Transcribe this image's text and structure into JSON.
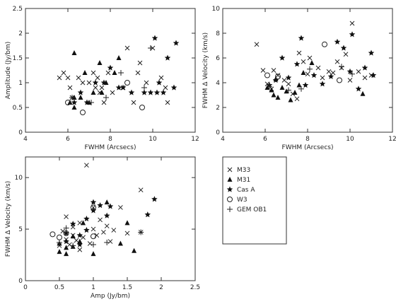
{
  "chart_data": [
    {
      "type": "scatter",
      "xlabel": "FWHM (Arcsecs)",
      "ylabel": "Amplitude (Jy/bm)",
      "xlim": [
        4,
        12
      ],
      "ylim": [
        0,
        2.5
      ],
      "xticks": [
        4,
        6,
        8,
        10,
        12
      ],
      "yticks": [
        0,
        0.5,
        1,
        1.5,
        2,
        2.5
      ],
      "xtick_labels": [
        "4",
        "6",
        "8",
        "10",
        "12"
      ],
      "ytick_labels": [
        "0",
        "0.5",
        "1",
        "1.5",
        "2",
        "2.5"
      ],
      "series": [
        {
          "name": "M33",
          "marker": "x",
          "points": [
            [
              5.6,
              1.1
            ],
            [
              5.8,
              1.2
            ],
            [
              6,
              1.1
            ],
            [
              6.1,
              0.9
            ],
            [
              6.2,
              0.7
            ],
            [
              6.5,
              1.1
            ],
            [
              6.7,
              1
            ],
            [
              7,
              1
            ],
            [
              7.2,
              1.2
            ],
            [
              7.3,
              0.9
            ],
            [
              7.4,
              1.1
            ],
            [
              7.5,
              0.8
            ],
            [
              7.6,
              0.9
            ],
            [
              7.7,
              0.6
            ],
            [
              7.9,
              1.2
            ],
            [
              8.1,
              0.8
            ],
            [
              8.6,
              0.9
            ],
            [
              8.8,
              1.7
            ],
            [
              9.1,
              0.6
            ],
            [
              9.3,
              1.2
            ],
            [
              9.4,
              1.4
            ],
            [
              9.7,
              1
            ],
            [
              10,
              1.7
            ],
            [
              10.4,
              1.1
            ],
            [
              10.6,
              0.9
            ],
            [
              10.7,
              0.6
            ]
          ]
        },
        {
          "name": "M31",
          "marker": "triangle",
          "points": [
            [
              6.1,
              0.6
            ],
            [
              6.3,
              0.7
            ],
            [
              6.3,
              0.5
            ],
            [
              6.3,
              1.6
            ],
            [
              6.6,
              0.7
            ],
            [
              6.8,
              1.2
            ],
            [
              7,
              0.6
            ],
            [
              7.2,
              0.8
            ],
            [
              7.5,
              1.4
            ],
            [
              7.6,
              0.8
            ],
            [
              7.8,
              1
            ],
            [
              8.2,
              1.2
            ],
            [
              8.4,
              1.5
            ]
          ]
        },
        {
          "name": "Cas A",
          "marker": "star",
          "points": [
            [
              6.3,
              0.6
            ],
            [
              6.6,
              0.8
            ],
            [
              6.9,
              0.6
            ],
            [
              7.3,
              1
            ],
            [
              7.7,
              1
            ],
            [
              8,
              1.3
            ],
            [
              8.4,
              0.9
            ],
            [
              8.6,
              0.9
            ],
            [
              9,
              0.8
            ],
            [
              9.6,
              0.8
            ],
            [
              9.9,
              0.8
            ],
            [
              10.1,
              1.9
            ],
            [
              10.2,
              0.8
            ],
            [
              10.3,
              1
            ],
            [
              10.5,
              0.8
            ],
            [
              10.7,
              1.5
            ],
            [
              11,
              0.9
            ],
            [
              11.1,
              1.8
            ]
          ]
        },
        {
          "name": "W3",
          "marker": "circle",
          "points": [
            [
              6,
              0.6
            ],
            [
              6.7,
              0.4
            ],
            [
              8.8,
              1
            ],
            [
              9.5,
              0.5
            ]
          ]
        },
        {
          "name": "GEM OB1",
          "marker": "plus",
          "points": [
            [
              6.2,
              0.7
            ],
            [
              7.1,
              0.6
            ],
            [
              7.8,
              0.7
            ],
            [
              8.5,
              1.2
            ],
            [
              9.6,
              0.9
            ],
            [
              9.9,
              1.7
            ]
          ]
        }
      ]
    },
    {
      "type": "scatter",
      "xlabel": "FWHM (Arcsecs)",
      "ylabel": "FWHM Δ Velocity (km/s)",
      "xlim": [
        4,
        12
      ],
      "ylim": [
        0,
        10
      ],
      "xticks": [
        4,
        6,
        8,
        10,
        12
      ],
      "yticks": [
        0,
        2,
        4,
        6,
        8,
        10
      ],
      "xtick_labels": [
        "4",
        "6",
        "8",
        "10",
        "12"
      ],
      "ytick_labels": [
        "0",
        "2",
        "4",
        "6",
        "8",
        "10"
      ],
      "series": [
        {
          "name": "M33",
          "marker": "x",
          "points": [
            [
              5.6,
              7.1
            ],
            [
              5.9,
              5
            ],
            [
              6.1,
              3.9
            ],
            [
              6.3,
              3.5
            ],
            [
              6.4,
              5
            ],
            [
              6.6,
              4.6
            ],
            [
              6.9,
              4.2
            ],
            [
              7.1,
              3.9
            ],
            [
              7.3,
              3.1
            ],
            [
              7.5,
              2.7
            ],
            [
              7.6,
              6.4
            ],
            [
              7.8,
              5.7
            ],
            [
              8,
              4.7
            ],
            [
              8.1,
              6
            ],
            [
              8.5,
              5.2
            ],
            [
              8.7,
              4.4
            ],
            [
              9,
              4.9
            ],
            [
              9.2,
              4.8
            ],
            [
              9.4,
              5.7
            ],
            [
              9.6,
              5.2
            ],
            [
              9.8,
              6.3
            ],
            [
              10,
              4.2
            ],
            [
              10.1,
              8.8
            ],
            [
              10.4,
              4.9
            ],
            [
              10.7,
              4.4
            ],
            [
              11,
              4.6
            ]
          ]
        },
        {
          "name": "M31",
          "marker": "triangle",
          "points": [
            [
              6.1,
              3.6
            ],
            [
              6.3,
              3.4
            ],
            [
              6.4,
              3
            ],
            [
              6.5,
              4.3
            ],
            [
              6.6,
              2.8
            ],
            [
              6.8,
              3.6
            ],
            [
              7,
              3.3
            ],
            [
              7.2,
              2.6
            ],
            [
              7.4,
              3.2
            ],
            [
              7.6,
              3.8
            ],
            [
              7.8,
              4.8
            ],
            [
              8.2,
              5.6
            ],
            [
              10.6,
              3.1
            ]
          ]
        },
        {
          "name": "Cas A",
          "marker": "star",
          "points": [
            [
              6.2,
              3.8
            ],
            [
              6.5,
              4.2
            ],
            [
              6.8,
              6
            ],
            [
              7.1,
              4.4
            ],
            [
              7.5,
              5.5
            ],
            [
              7.7,
              7.6
            ],
            [
              7.9,
              3.8
            ],
            [
              8.3,
              4.6
            ],
            [
              8.7,
              3.9
            ],
            [
              9.1,
              4.5
            ],
            [
              9.4,
              7.3
            ],
            [
              9.7,
              6.8
            ],
            [
              10,
              4.9
            ],
            [
              10.1,
              7.9
            ],
            [
              10.4,
              3.5
            ],
            [
              10.7,
              5.2
            ],
            [
              11,
              6.4
            ],
            [
              11.1,
              4.6
            ]
          ]
        },
        {
          "name": "W3",
          "marker": "circle",
          "points": [
            [
              6.1,
              4.6
            ],
            [
              6.6,
              4.5
            ],
            [
              8.8,
              7.1
            ],
            [
              9.5,
              4.2
            ]
          ]
        },
        {
          "name": "GEM OB1",
          "marker": "plus",
          "points": [
            [
              6.2,
              3.7
            ],
            [
              7.1,
              3.4
            ],
            [
              7.7,
              3.5
            ],
            [
              8.1,
              5.1
            ],
            [
              9.6,
              5.3
            ],
            [
              10.1,
              4.7
            ]
          ]
        }
      ]
    },
    {
      "type": "scatter",
      "xlabel": "Amp (Jy/bm)",
      "ylabel": "FWHM Δ Velocity (km/s)",
      "xlim": [
        0,
        2.5
      ],
      "ylim": [
        0,
        12
      ],
      "xticks": [
        0,
        0.5,
        1,
        1.5,
        2,
        2.5
      ],
      "yticks": [
        0,
        5,
        10
      ],
      "xtick_labels": [
        "0",
        "0.5",
        "1",
        "1.5",
        "2",
        "2.5"
      ],
      "ytick_labels": [
        "0",
        "5",
        "10"
      ],
      "series": [
        {
          "name": "M33",
          "marker": "x",
          "points": [
            [
              0.5,
              3.4
            ],
            [
              0.55,
              4.8
            ],
            [
              0.6,
              6.2
            ],
            [
              0.6,
              4
            ],
            [
              0.65,
              3.5
            ],
            [
              0.7,
              5.2
            ],
            [
              0.7,
              4.4
            ],
            [
              0.75,
              3.9
            ],
            [
              0.8,
              3
            ],
            [
              0.8,
              5.6
            ],
            [
              0.85,
              4.2
            ],
            [
              0.9,
              11.2
            ],
            [
              0.95,
              3.6
            ],
            [
              1,
              7.1
            ],
            [
              1,
              5
            ],
            [
              1.05,
              4.4
            ],
            [
              1.1,
              5.9
            ],
            [
              1.15,
              4.7
            ],
            [
              1.2,
              5.3
            ],
            [
              1.25,
              3.8
            ],
            [
              1.3,
              4.9
            ],
            [
              1.4,
              7.1
            ],
            [
              1.5,
              4.6
            ],
            [
              1.7,
              8.8
            ],
            [
              1.7,
              4.7
            ]
          ]
        },
        {
          "name": "M31",
          "marker": "triangle",
          "points": [
            [
              0.5,
              2.8
            ],
            [
              0.5,
              3.6
            ],
            [
              0.6,
              3.2
            ],
            [
              0.6,
              2.6
            ],
            [
              0.7,
              4.3
            ],
            [
              0.7,
              3.3
            ],
            [
              0.8,
              3.8
            ],
            [
              0.85,
              5.6
            ],
            [
              1,
              2.6
            ],
            [
              1.2,
              7.6
            ],
            [
              1.4,
              3.6
            ],
            [
              1.5,
              5.6
            ],
            [
              1.6,
              2.9
            ]
          ]
        },
        {
          "name": "Cas A",
          "marker": "star",
          "points": [
            [
              0.6,
              3.8
            ],
            [
              0.6,
              4.6
            ],
            [
              0.7,
              5.5
            ],
            [
              0.8,
              3.5
            ],
            [
              0.8,
              4.4
            ],
            [
              0.9,
              4.9
            ],
            [
              0.9,
              6
            ],
            [
              1,
              7.6
            ],
            [
              1,
              6.8
            ],
            [
              1.1,
              7.3
            ],
            [
              1.2,
              6.3
            ],
            [
              1.25,
              7.2
            ],
            [
              1.8,
              6.4
            ],
            [
              1.9,
              7.9
            ]
          ]
        },
        {
          "name": "W3",
          "marker": "circle",
          "points": [
            [
              0.4,
              4.5
            ],
            [
              0.5,
              4.2
            ],
            [
              0.6,
              4.6
            ],
            [
              1,
              7.1
            ],
            [
              1,
              4.3
            ]
          ]
        },
        {
          "name": "GEM OB1",
          "marker": "plus",
          "points": [
            [
              0.5,
              3.7
            ],
            [
              0.6,
              5.1
            ],
            [
              0.7,
              3.4
            ],
            [
              1,
              3.5
            ],
            [
              1.2,
              3.7
            ],
            [
              1.7,
              4.7
            ]
          ]
        }
      ]
    }
  ],
  "legend": [
    {
      "label": "M33",
      "marker": "x"
    },
    {
      "label": "M31",
      "marker": "triangle"
    },
    {
      "label": "Cas A",
      "marker": "star"
    },
    {
      "label": "W3",
      "marker": "circle"
    },
    {
      "label": "GEM OB1",
      "marker": "plus"
    }
  ]
}
